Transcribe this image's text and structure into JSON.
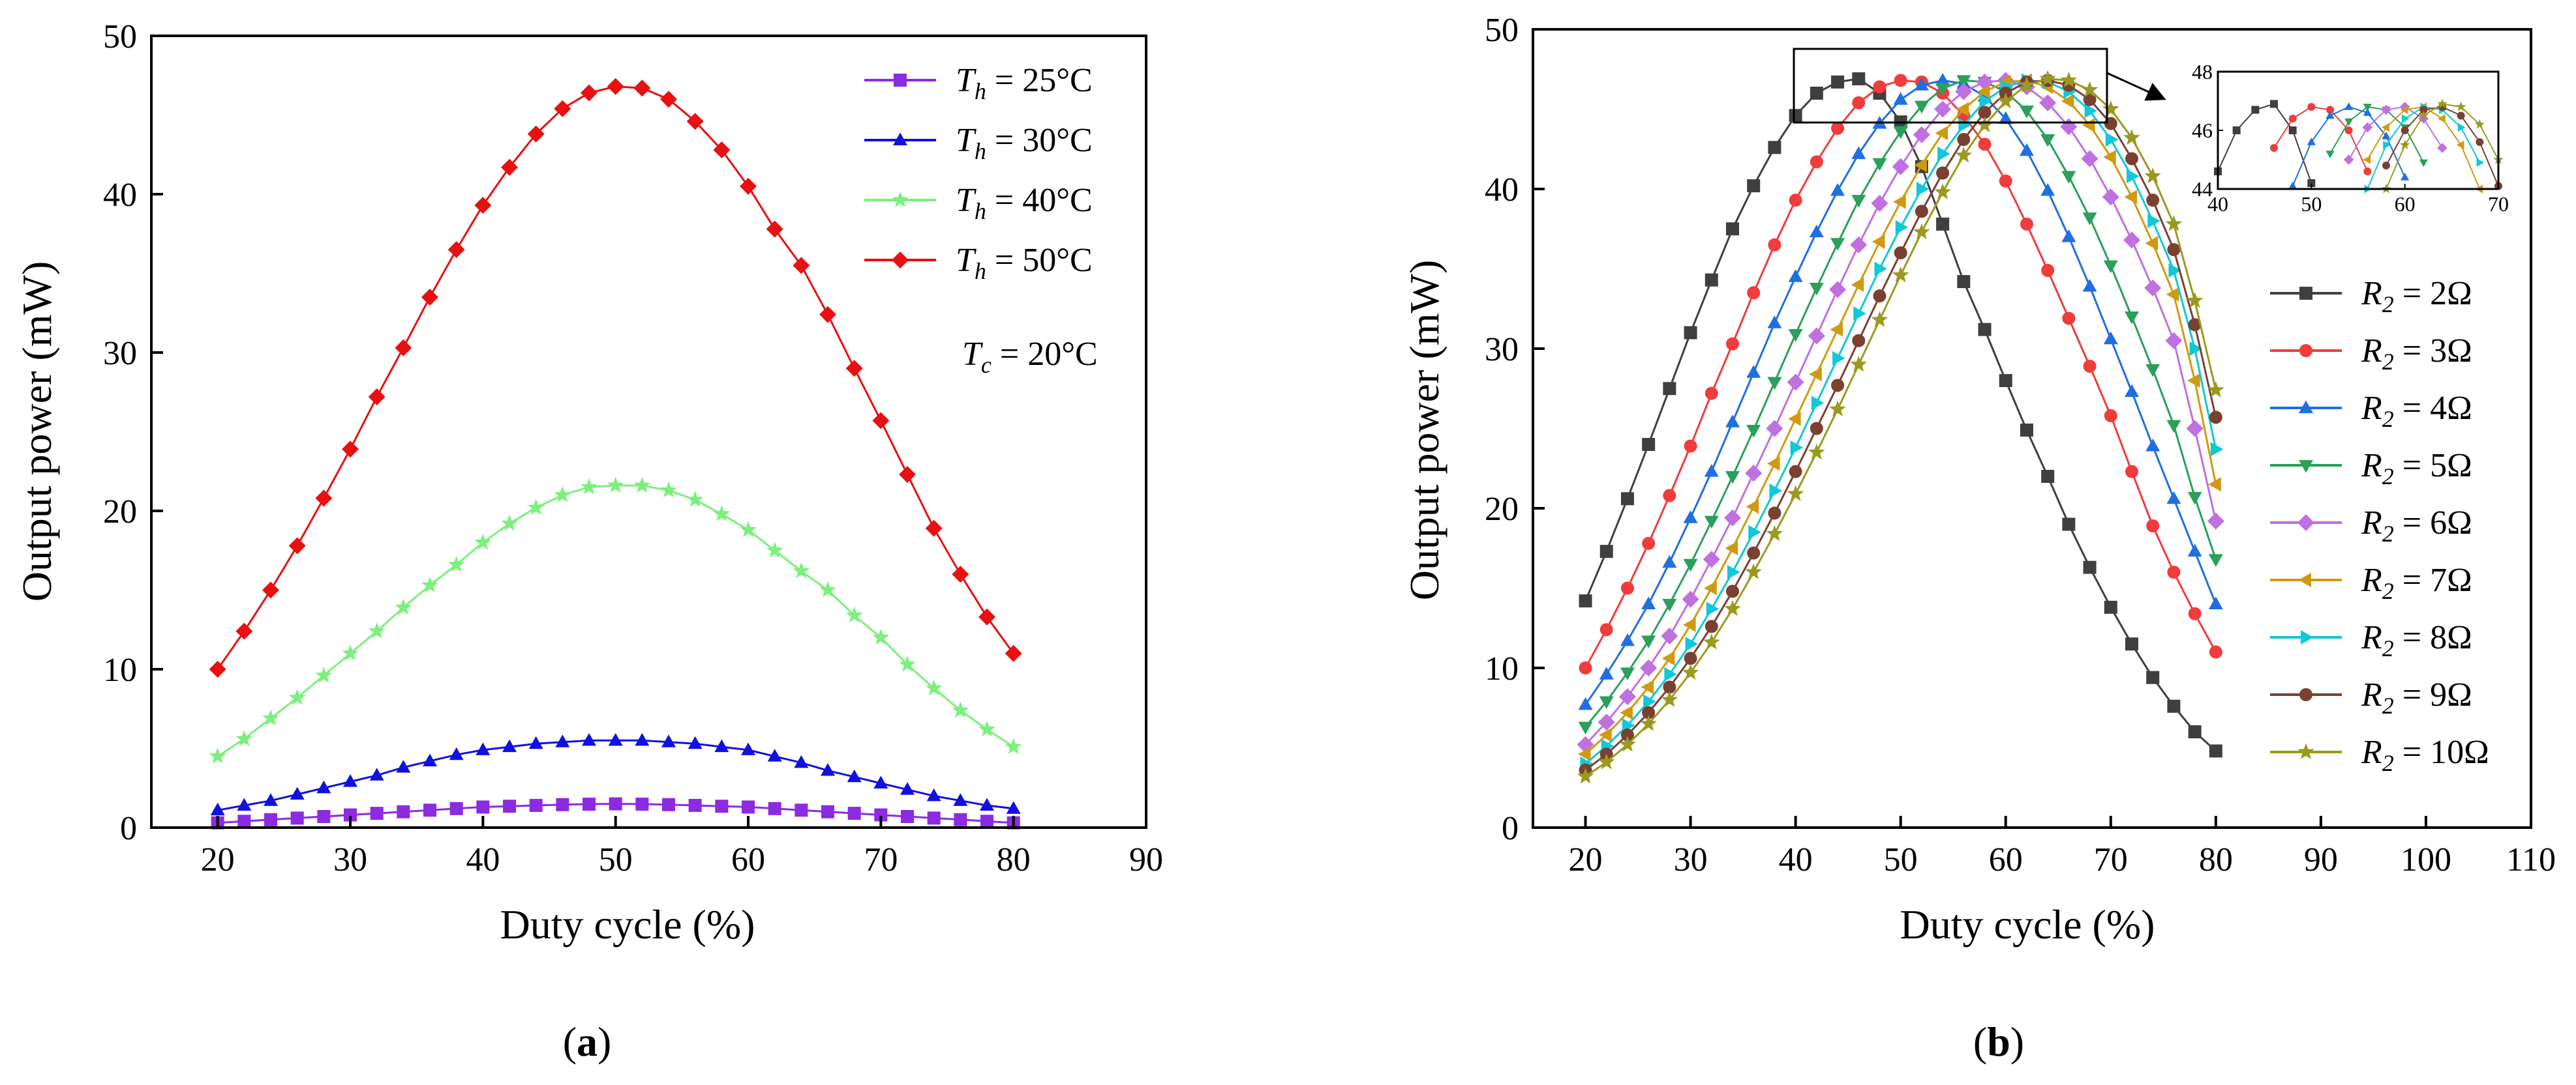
{
  "chart_data": [
    {
      "type": "line",
      "panel_label": "a",
      "xlabel": "Duty cycle (%)",
      "ylabel": "Output power (mW)",
      "xlim": [
        15,
        90
      ],
      "ylim": [
        0,
        50
      ],
      "xticks": [
        20,
        30,
        40,
        50,
        60,
        70,
        80,
        90
      ],
      "yticks": [
        0,
        10,
        20,
        30,
        40,
        50
      ],
      "legend_position": "top-right",
      "annotation": {
        "var": "T",
        "sub": "c",
        "text": " = 20°C"
      },
      "x": [
        20,
        22,
        24,
        26,
        28,
        30,
        32,
        34,
        36,
        38,
        40,
        42,
        44,
        46,
        48,
        50,
        52,
        54,
        56,
        58,
        60,
        62,
        64,
        66,
        68,
        70,
        72,
        74,
        76,
        78,
        80
      ],
      "series": [
        {
          "var": "T",
          "sub": "h",
          "label": " = 25°C",
          "color": "#8b2be2",
          "marker": "square",
          "values": [
            0.3,
            0.4,
            0.5,
            0.6,
            0.7,
            0.8,
            0.9,
            1.0,
            1.1,
            1.2,
            1.3,
            1.35,
            1.4,
            1.45,
            1.48,
            1.5,
            1.48,
            1.45,
            1.4,
            1.35,
            1.3,
            1.2,
            1.1,
            1.0,
            0.9,
            0.8,
            0.7,
            0.6,
            0.5,
            0.4,
            0.3
          ]
        },
        {
          "var": "T",
          "sub": "h",
          "label": " = 30°C",
          "color": "#1010e0",
          "marker": "triangle",
          "values": [
            1.1,
            1.4,
            1.7,
            2.1,
            2.5,
            2.9,
            3.3,
            3.8,
            4.2,
            4.6,
            4.9,
            5.1,
            5.3,
            5.4,
            5.5,
            5.5,
            5.5,
            5.4,
            5.3,
            5.1,
            4.9,
            4.5,
            4.1,
            3.6,
            3.2,
            2.8,
            2.4,
            2.0,
            1.7,
            1.4,
            1.2
          ]
        },
        {
          "var": "T",
          "sub": "h",
          "label": " = 40°C",
          "color": "#7cf07c",
          "marker": "star",
          "values": [
            4.5,
            5.6,
            6.9,
            8.2,
            9.6,
            11.0,
            12.4,
            13.9,
            15.3,
            16.6,
            18.0,
            19.2,
            20.2,
            21.0,
            21.5,
            21.6,
            21.6,
            21.3,
            20.7,
            19.8,
            18.8,
            17.5,
            16.2,
            15.0,
            13.4,
            12.0,
            10.3,
            8.8,
            7.4,
            6.2,
            5.1
          ]
        },
        {
          "var": "T",
          "sub": "h",
          "label": " = 50°C",
          "color": "#e81010",
          "marker": "diamond",
          "values": [
            10.0,
            12.4,
            15.0,
            17.8,
            20.8,
            23.9,
            27.2,
            30.3,
            33.5,
            36.5,
            39.3,
            41.7,
            43.8,
            45.4,
            46.4,
            46.8,
            46.7,
            46.0,
            44.6,
            42.8,
            40.5,
            37.8,
            35.5,
            32.4,
            29.0,
            25.7,
            22.3,
            18.9,
            16.0,
            13.3,
            11.0
          ]
        }
      ]
    },
    {
      "type": "line",
      "panel_label": "b",
      "xlabel": "Duty cycle (%)",
      "ylabel": "Output power (mW)",
      "xlim": [
        15,
        110
      ],
      "ylim": [
        0,
        50
      ],
      "xticks": [
        20,
        30,
        40,
        50,
        60,
        70,
        80,
        90,
        100,
        110
      ],
      "yticks": [
        0,
        10,
        20,
        30,
        40,
        50
      ],
      "legend_position": "right",
      "x": [
        20,
        22,
        24,
        26,
        28,
        30,
        32,
        34,
        36,
        38,
        40,
        42,
        44,
        46,
        48,
        50,
        52,
        54,
        56,
        58,
        60,
        62,
        64,
        66,
        68,
        70,
        72,
        74,
        76,
        78,
        80
      ],
      "series": [
        {
          "var": "R",
          "sub": "2",
          "label": " = 2Ω",
          "color": "#3f3f3f",
          "marker": "square",
          "values": [
            14.2,
            17.3,
            20.6,
            24.0,
            27.5,
            31.0,
            34.3,
            37.5,
            40.2,
            42.6,
            44.6,
            46.0,
            46.7,
            46.9,
            46.0,
            44.2,
            41.4,
            37.8,
            34.2,
            31.2,
            28.0,
            24.9,
            22.0,
            19.0,
            16.3,
            13.8,
            11.5,
            9.4,
            7.6,
            6.0,
            4.8
          ]
        },
        {
          "var": "R",
          "sub": "2",
          "label": " = 3Ω",
          "color": "#f03c3c",
          "marker": "circle",
          "values": [
            10.0,
            12.4,
            15.0,
            17.8,
            20.8,
            23.9,
            27.2,
            30.3,
            33.5,
            36.5,
            39.3,
            41.7,
            43.8,
            45.4,
            46.4,
            46.8,
            46.7,
            46.0,
            44.6,
            42.8,
            40.5,
            37.8,
            34.9,
            31.9,
            28.9,
            25.8,
            22.3,
            18.9,
            16.0,
            13.4,
            11.0
          ]
        },
        {
          "var": "R",
          "sub": "2",
          "label": " = 4Ω",
          "color": "#1f6fe0",
          "marker": "triangle",
          "values": [
            7.7,
            9.6,
            11.7,
            14.0,
            16.6,
            19.4,
            22.3,
            25.4,
            28.5,
            31.6,
            34.5,
            37.3,
            39.9,
            42.2,
            44.1,
            45.6,
            46.5,
            46.8,
            46.6,
            45.8,
            44.4,
            42.4,
            39.9,
            37.0,
            33.9,
            30.6,
            27.3,
            23.9,
            20.6,
            17.3,
            14.0
          ]
        },
        {
          "var": "R",
          "sub": "2",
          "label": " = 5Ω",
          "color": "#2aa05a",
          "marker": "triangle-down",
          "values": [
            6.3,
            7.9,
            9.7,
            11.7,
            14.0,
            16.5,
            19.2,
            22.0,
            24.9,
            27.9,
            30.9,
            33.8,
            36.6,
            39.3,
            41.6,
            43.6,
            45.2,
            46.3,
            46.8,
            46.7,
            46.1,
            44.9,
            43.1,
            40.8,
            38.2,
            35.2,
            32.0,
            28.7,
            25.2,
            20.7,
            16.8
          ]
        },
        {
          "var": "R",
          "sub": "2",
          "label": " = 6Ω",
          "color": "#c070e0",
          "marker": "diamond",
          "values": [
            5.2,
            6.6,
            8.2,
            10.0,
            12.0,
            14.3,
            16.8,
            19.4,
            22.2,
            25.0,
            27.9,
            30.8,
            33.7,
            36.5,
            39.1,
            41.4,
            43.4,
            45.0,
            46.1,
            46.7,
            46.8,
            46.4,
            45.4,
            43.9,
            41.9,
            39.5,
            36.8,
            33.8,
            30.5,
            25.0,
            19.2
          ]
        },
        {
          "var": "R",
          "sub": "2",
          "label": " = 7Ω",
          "color": "#d09a10",
          "marker": "triangle-left",
          "values": [
            4.6,
            5.8,
            7.2,
            8.8,
            10.6,
            12.7,
            15.0,
            17.5,
            20.1,
            22.8,
            25.6,
            28.4,
            31.2,
            34.0,
            36.7,
            39.2,
            41.5,
            43.5,
            45.0,
            46.1,
            46.7,
            46.8,
            46.4,
            45.5,
            44.0,
            42.0,
            39.5,
            36.6,
            33.4,
            28.0,
            21.5
          ]
        },
        {
          "var": "R",
          "sub": "2",
          "label": " = 8Ω",
          "color": "#10c8d8",
          "marker": "triangle-right",
          "values": [
            4.0,
            5.1,
            6.4,
            7.9,
            9.6,
            11.5,
            13.7,
            16.0,
            18.5,
            21.1,
            23.8,
            26.6,
            29.4,
            32.2,
            35.0,
            37.6,
            40.0,
            42.2,
            44.0,
            45.5,
            46.4,
            46.8,
            46.7,
            46.1,
            44.9,
            43.1,
            40.8,
            38.0,
            34.9,
            30.0,
            23.7
          ]
        },
        {
          "var": "R",
          "sub": "2",
          "label": " = 9Ω",
          "color": "#7a4030",
          "marker": "circle",
          "values": [
            3.6,
            4.6,
            5.8,
            7.2,
            8.8,
            10.6,
            12.6,
            14.8,
            17.2,
            19.7,
            22.3,
            25.0,
            27.7,
            30.5,
            33.3,
            36.0,
            38.6,
            41.0,
            43.1,
            44.8,
            46.0,
            46.7,
            46.8,
            46.5,
            45.6,
            44.1,
            41.9,
            39.3,
            36.2,
            31.5,
            25.7
          ]
        },
        {
          "var": "R",
          "sub": "2",
          "label": " = 10Ω",
          "color": "#9a9a20",
          "marker": "star",
          "values": [
            3.2,
            4.1,
            5.2,
            6.5,
            8.0,
            9.7,
            11.6,
            13.7,
            16.0,
            18.4,
            20.9,
            23.5,
            26.2,
            29.0,
            31.8,
            34.6,
            37.3,
            39.8,
            42.1,
            44.0,
            45.5,
            46.5,
            46.9,
            46.8,
            46.2,
            45.0,
            43.2,
            40.8,
            37.8,
            33.0,
            27.4
          ]
        }
      ],
      "inset": {
        "xlim": [
          40,
          70
        ],
        "ylim": [
          44,
          48
        ],
        "xticks": [
          40,
          50,
          60,
          70
        ],
        "yticks": [
          44,
          46,
          48
        ]
      }
    }
  ]
}
